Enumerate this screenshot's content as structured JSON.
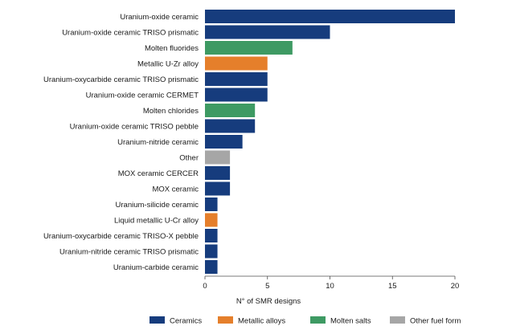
{
  "chart_data": {
    "type": "bar",
    "orientation": "horizontal",
    "xlabel": "N° of SMR designs",
    "xlim": [
      0,
      20
    ],
    "xticks": [
      0,
      5,
      10,
      15,
      20
    ],
    "grid": false,
    "legend_position": "bottom",
    "categories": [
      "Uranium-oxide ceramic",
      "Uranium-oxide ceramic TRISO prismatic",
      "Molten fluorides",
      "Metallic U-Zr alloy",
      "Uranium-oxycarbide ceramic TRISO prismatic",
      "Uranium-oxide ceramic CERMET",
      "Molten chlorides",
      "Uranium-oxide ceramic TRISO pebble",
      "Uranium-nitride ceramic",
      "Other",
      "MOX ceramic CERCER",
      "MOX ceramic",
      "Uranium-silicide ceramic",
      "Liquid metallic U-Cr alloy",
      "Uranium-oxycarbide ceramic TRISO-X pebble",
      "Uranium-nitride ceramic TRISO prismatic",
      "Uranium-carbide ceramic"
    ],
    "values": [
      20,
      10,
      7,
      5,
      5,
      5,
      4,
      4,
      3,
      2,
      2,
      2,
      1,
      1,
      1,
      1,
      1
    ],
    "bar_groups": [
      "Ceramics",
      "Ceramics",
      "Molten salts",
      "Metallic alloys",
      "Ceramics",
      "Ceramics",
      "Molten salts",
      "Ceramics",
      "Ceramics",
      "Other fuel form",
      "Ceramics",
      "Ceramics",
      "Ceramics",
      "Metallic alloys",
      "Ceramics",
      "Ceramics",
      "Ceramics"
    ],
    "legend": [
      {
        "name": "Ceramics",
        "color": "#163c7d"
      },
      {
        "name": "Metallic alloys",
        "color": "#e57f2b"
      },
      {
        "name": "Molten salts",
        "color": "#3e9a63"
      },
      {
        "name": "Other fuel form",
        "color": "#a6a6a6"
      }
    ]
  }
}
